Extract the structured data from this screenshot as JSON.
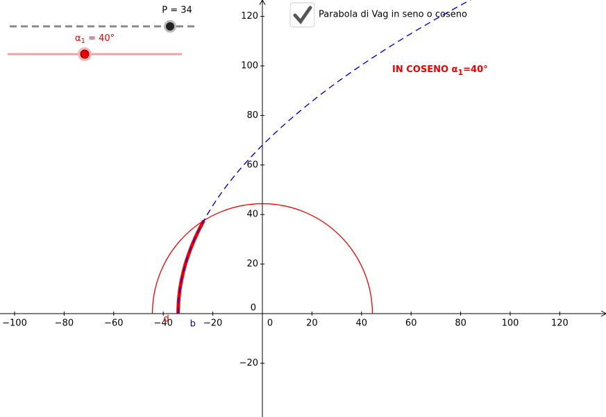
{
  "sliders": [
    {
      "name": "P",
      "value": 34,
      "label": "P = 34"
    },
    {
      "name": "α1",
      "value": 40,
      "label_parts": [
        "α",
        "1",
        " = 40°"
      ]
    }
  ],
  "checkbox": {
    "label": "Parabola di Vag in seno o coseno",
    "checked": true
  },
  "annotation": {
    "parts": [
      "IN COSENO α",
      "1",
      "=40°"
    ]
  },
  "points": [
    {
      "label": "d"
    },
    {
      "label": "b"
    }
  ],
  "axes": {
    "origin_label": "0",
    "xticks": [
      {
        "value": -100,
        "label": "−100"
      },
      {
        "value": -80,
        "label": "−80"
      },
      {
        "value": -60,
        "label": "−60"
      },
      {
        "value": -40,
        "label": "−40"
      },
      {
        "value": -20,
        "label": "−20"
      },
      {
        "value": 0,
        "label": "0"
      },
      20,
      40,
      60,
      80,
      100,
      120
    ],
    "yticks": [
      {
        "value": -20,
        "label": "−20"
      },
      20,
      40,
      60,
      80,
      100,
      120
    ]
  }
}
